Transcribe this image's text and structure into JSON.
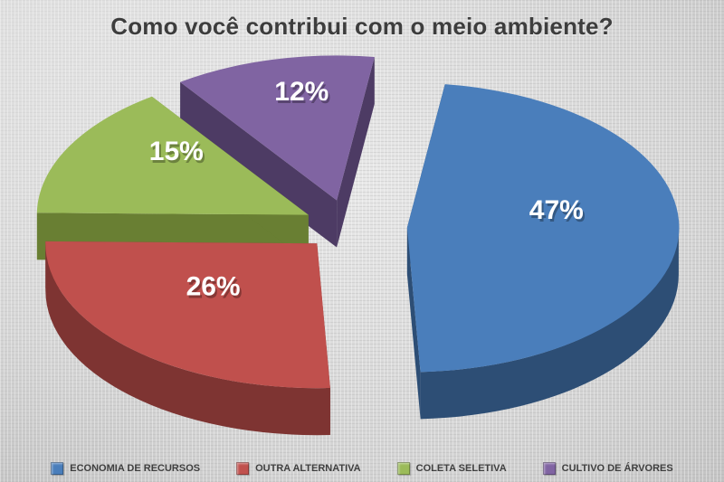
{
  "title": "Como você contribui com o meio ambiente?",
  "chart_data": {
    "type": "pie",
    "is_3d": true,
    "exploded": true,
    "title": "Como você contribui com o meio ambiente?",
    "legend_position": "bottom",
    "rotation": "clockwise",
    "start_angle_deg": 8,
    "slices": [
      {
        "label": "ECONOMIA DE RECURSOS",
        "value": 47,
        "display": "47%",
        "color": "#4a7ebb",
        "side_color": "#2d4e75"
      },
      {
        "label": "OUTRA ALTERNATIVA",
        "value": 26,
        "display": "26%",
        "color": "#c0504d",
        "side_color": "#7e3432"
      },
      {
        "label": "COLETA SELETIVA",
        "value": 15,
        "display": "15%",
        "color": "#9bbb59",
        "side_color": "#697f33"
      },
      {
        "label": "CULTIVO DE ÁRVORES",
        "value": 12,
        "display": "12%",
        "color": "#8064a2",
        "side_color": "#4d3b64"
      }
    ]
  }
}
